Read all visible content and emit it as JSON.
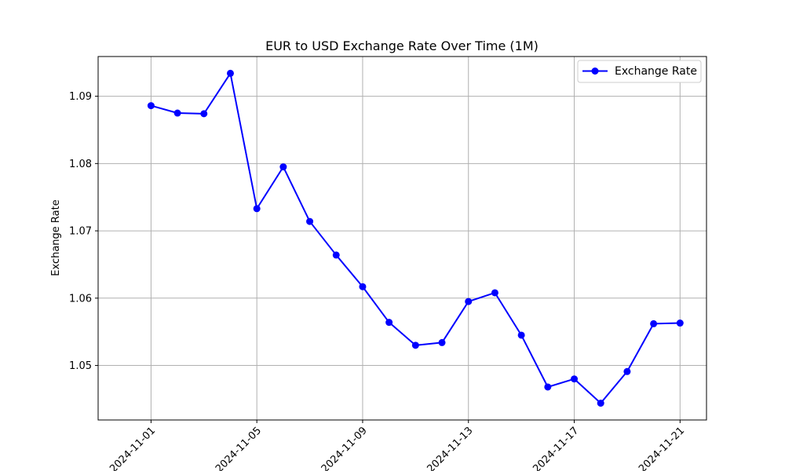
{
  "chart_data": {
    "type": "line",
    "title": "EUR to USD Exchange Rate Over Time (1M)",
    "xlabel": "",
    "ylabel": "Exchange Rate",
    "x": [
      "2024-11-01",
      "2024-11-02",
      "2024-11-03",
      "2024-11-04",
      "2024-11-05",
      "2024-11-06",
      "2024-11-07",
      "2024-11-08",
      "2024-11-09",
      "2024-11-10",
      "2024-11-11",
      "2024-11-12",
      "2024-11-13",
      "2024-11-14",
      "2024-11-15",
      "2024-11-16",
      "2024-11-17",
      "2024-11-18",
      "2024-11-19",
      "2024-11-20",
      "2024-11-21"
    ],
    "series": [
      {
        "name": "Exchange Rate",
        "color": "#0000ff",
        "marker": "circle",
        "values": [
          1.0886,
          1.0875,
          1.0874,
          1.0934,
          1.0733,
          1.0795,
          1.0714,
          1.0664,
          1.0617,
          1.0564,
          1.053,
          1.0534,
          1.0595,
          1.0608,
          1.0545,
          1.0468,
          1.048,
          1.0444,
          1.0491,
          1.0562,
          1.0563
        ]
      }
    ],
    "xticks": [
      "2024-11-01",
      "2024-11-05",
      "2024-11-09",
      "2024-11-13",
      "2024-11-17",
      "2024-11-21"
    ],
    "yticks": [
      1.05,
      1.06,
      1.07,
      1.08,
      1.09
    ],
    "xlim": [
      "2024-10-30T00:00:00",
      "2024-11-22T00:00:00"
    ],
    "ylim": [
      1.0419,
      1.0959
    ],
    "grid": true,
    "legend": "top-right"
  }
}
